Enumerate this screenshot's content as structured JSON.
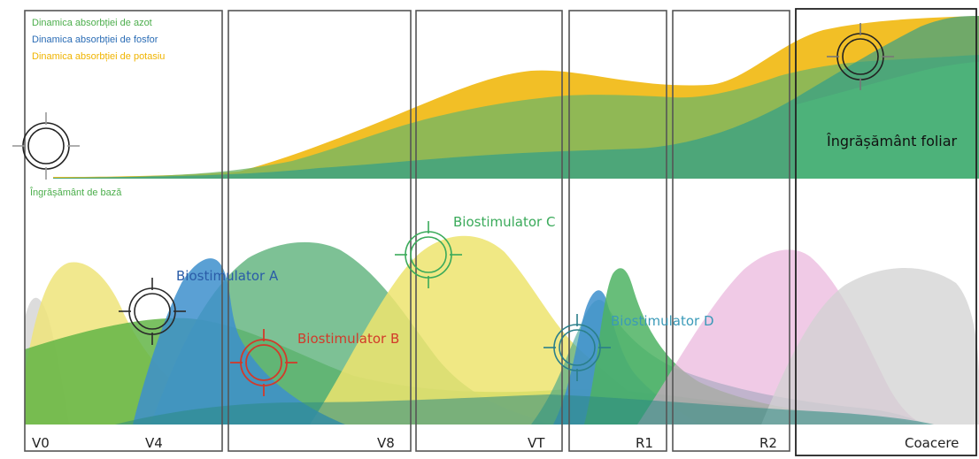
{
  "legend": {
    "nitrogen": "Dinamica absorbției de azot",
    "phosphorus": "Dinamica absorbției de fosfor",
    "potassium": "Dinamica absorbției de potasiu",
    "nitrogen_color": "#4cae4c",
    "phosphorus_color": "#2a6cb5",
    "potassium_color": "#f0b400"
  },
  "labels": {
    "base_fertilizer": "Îngrășământ de bază",
    "foliar_fertilizer": "Îngrășământ foliar",
    "biostim_a": "Biostimulator A",
    "biostim_b": "Biostimulator B",
    "biostim_c": "Biostimulator C",
    "biostim_d": "Biostimulator D"
  },
  "label_colors": {
    "biostim_a": "#2a5ca8",
    "biostim_b": "#d23a2a",
    "biostim_c": "#3aaa5a",
    "biostim_d": "#3a9ab8",
    "foliar": "#111111"
  },
  "stages": [
    "V0",
    "V4",
    "V8",
    "VT",
    "R1",
    "R2",
    "Coacere"
  ],
  "icons": [
    "target-icon"
  ]
}
